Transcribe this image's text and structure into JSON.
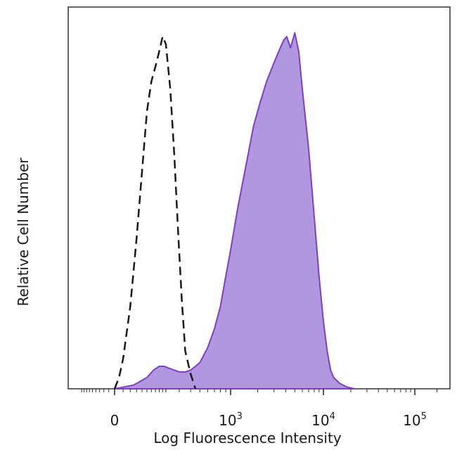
{
  "chart_data": {
    "type": "area",
    "xlabel": "Log Fluorescence Intensity",
    "ylabel": "Relative Cell Number",
    "x_scale": "biexponential",
    "x_tick_labels": [
      {
        "value": 0,
        "base": "0",
        "exp": ""
      },
      {
        "value": 1000,
        "base": "10",
        "exp": "3"
      },
      {
        "value": 10000,
        "base": "10",
        "exp": "4"
      },
      {
        "value": 100000,
        "base": "10",
        "exp": "5"
      }
    ],
    "ylim": [
      0,
      100
    ],
    "grid": false,
    "legend": "none",
    "series": [
      {
        "style": "dashed-outline",
        "color": "#1a1a1a",
        "x": [
          0,
          10,
          20,
          40,
          60,
          80,
          100,
          120,
          140,
          160,
          180,
          200,
          230,
          260,
          290,
          320,
          350,
          400,
          450
        ],
        "y": [
          0,
          3,
          8,
          22,
          40,
          58,
          74,
          82,
          86,
          90,
          94,
          92,
          80,
          62,
          42,
          24,
          10,
          4,
          0
        ]
      },
      {
        "style": "filled",
        "color": "#7f3fbf",
        "fill": "#b197e0",
        "x": [
          0,
          50,
          100,
          130,
          160,
          190,
          220,
          260,
          300,
          350,
          400,
          450,
          500,
          600,
          700,
          800,
          900,
          1000,
          1200,
          1500,
          1800,
          2100,
          2500,
          3000,
          3500,
          3800,
          4100,
          4500,
          5000,
          5500,
          6000,
          7000,
          8000,
          9000,
          10000,
          11000,
          12000,
          13000,
          15000,
          18000,
          22000
        ],
        "y": [
          0,
          1,
          3,
          5,
          6,
          6,
          5.5,
          5,
          4.5,
          4.5,
          5,
          6,
          7,
          11,
          16,
          22,
          30,
          37,
          48,
          60,
          70,
          76,
          82,
          87,
          91,
          93,
          94,
          91,
          95,
          90,
          80,
          64,
          46,
          30,
          18,
          10,
          5,
          3,
          1.5,
          0.5,
          0
        ]
      }
    ]
  }
}
